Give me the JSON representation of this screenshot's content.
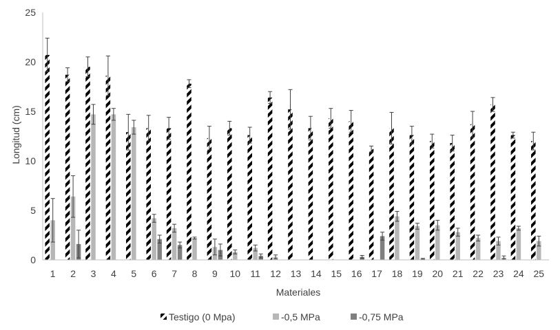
{
  "chart_data": {
    "type": "bar",
    "title": "",
    "xlabel": "Materiales",
    "ylabel": "Longitud (cm)",
    "ylim": [
      0,
      25
    ],
    "yticks": [
      0,
      5,
      10,
      15,
      20,
      25
    ],
    "grid": false,
    "legend_position": "bottom",
    "categories": [
      "1",
      "2",
      "3",
      "4",
      "5",
      "6",
      "7",
      "8",
      "9",
      "10",
      "11",
      "12",
      "13",
      "14",
      "15",
      "16",
      "17",
      "18",
      "19",
      "20",
      "21",
      "22",
      "23",
      "24",
      "25"
    ],
    "series": [
      {
        "name": "Testigo (0 Mpa)",
        "color": "#000000",
        "pattern": "diagonal-stripes",
        "values": [
          20.7,
          18.7,
          19.5,
          18.6,
          12.9,
          13.3,
          13.3,
          17.8,
          12.3,
          13.3,
          12.6,
          16.4,
          15.2,
          13.3,
          14.3,
          14.0,
          11.2,
          13.3,
          12.6,
          12.0,
          11.8,
          13.7,
          15.7,
          12.6,
          12.0
        ],
        "errors": [
          1.7,
          0.7,
          1.0,
          2.0,
          1.8,
          1.3,
          1.1,
          0.4,
          1.2,
          0.7,
          0.8,
          0.6,
          2.0,
          1.2,
          1.0,
          1.1,
          0.3,
          1.6,
          0.9,
          0.7,
          0.8,
          1.3,
          0.7,
          0.3,
          0.9
        ]
      },
      {
        "name": "-0,5 MPa",
        "color": "#b7b7b7",
        "pattern": "solid",
        "values": [
          4.0,
          6.4,
          14.7,
          14.7,
          13.4,
          4.2,
          3.2,
          2.2,
          1.3,
          0.8,
          1.2,
          0.3,
          0,
          0,
          0,
          0,
          0,
          4.4,
          3.4,
          3.5,
          2.8,
          2.2,
          1.9,
          3.2,
          1.9
        ],
        "errors": [
          2.2,
          2.1,
          1.0,
          0.6,
          0.7,
          0.4,
          0.4,
          0.1,
          0.8,
          0.2,
          0.3,
          0.2,
          0,
          0,
          0,
          0,
          0,
          0.5,
          0.3,
          0.5,
          0.4,
          0.3,
          0.4,
          0.2,
          0.5
        ]
      },
      {
        "name": "-0,75 MPa",
        "color": "#808080",
        "pattern": "solid",
        "values": [
          0,
          1.6,
          0,
          0,
          0,
          2.1,
          1.5,
          0,
          1.0,
          0,
          0.4,
          0,
          0,
          0,
          0,
          0.3,
          2.4,
          0,
          0.1,
          0,
          0,
          0,
          0.2,
          0,
          0
        ],
        "errors": [
          0,
          1.4,
          0,
          0,
          0,
          0.4,
          0.3,
          0,
          0.6,
          0,
          0.2,
          0,
          0,
          0,
          0,
          0.15,
          0.4,
          0,
          0.05,
          0,
          0,
          0,
          0.2,
          0,
          0
        ]
      }
    ]
  }
}
